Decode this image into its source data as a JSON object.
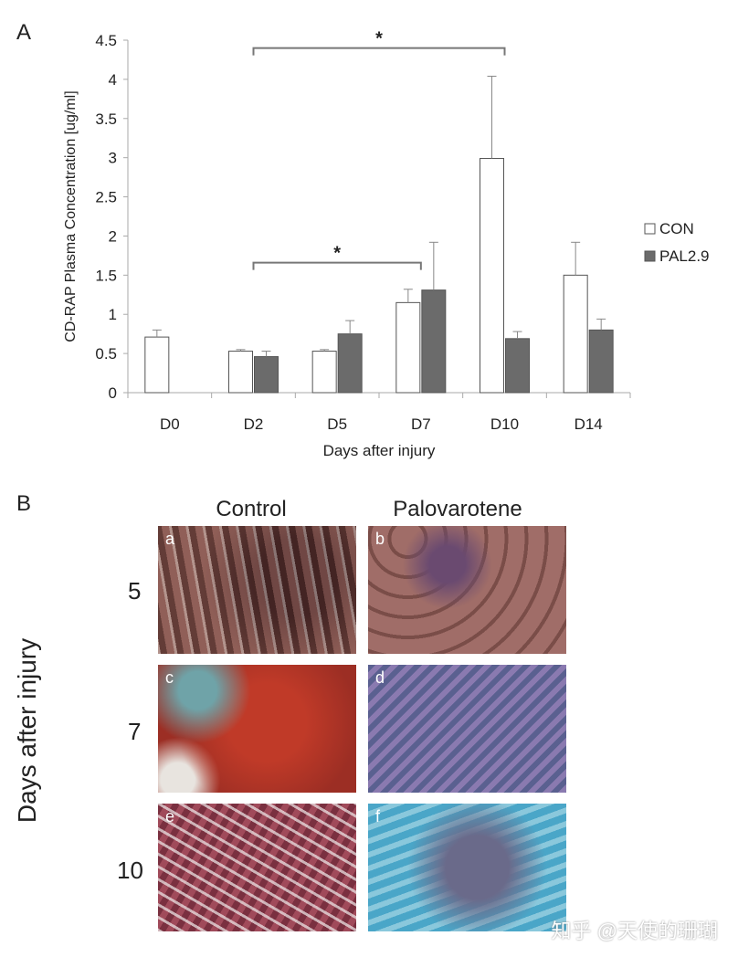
{
  "panel_a_letter": "A",
  "panel_b_letter": "B",
  "chart_data": {
    "type": "bar",
    "categories": [
      "D0",
      "D2",
      "D5",
      "D7",
      "D10",
      "D14"
    ],
    "series": [
      {
        "name": "CON",
        "color": "#ffffff",
        "values": [
          0.71,
          0.53,
          0.53,
          1.15,
          2.99,
          1.5
        ],
        "errors": [
          0.09,
          0.02,
          0.02,
          0.17,
          1.05,
          0.42
        ]
      },
      {
        "name": "PAL2.9",
        "color": "#6b6b6b",
        "values": [
          null,
          0.46,
          0.75,
          1.31,
          0.69,
          0.8
        ],
        "errors": [
          null,
          0.07,
          0.17,
          0.61,
          0.09,
          0.14
        ]
      }
    ],
    "xlabel": "Days after injury",
    "ylabel": "CD-RAP Plasma Concentration [ug/ml]",
    "ylim": [
      0,
      4.5
    ],
    "yticks": [
      "0",
      "0.5",
      "1",
      "1.5",
      "2",
      "2.5",
      "3",
      "3.5",
      "4",
      "4.5"
    ],
    "grid": false,
    "legend_position": "right",
    "annotations": [
      {
        "text": "*",
        "from": "D2",
        "to": "D10",
        "y": 4.4
      },
      {
        "text": "*",
        "from": "D2",
        "to": "D7",
        "y": 1.66
      }
    ]
  },
  "panel_b": {
    "columns": [
      "Control",
      "Palovarotene"
    ],
    "row_title": "Days after injury",
    "rows": [
      "5",
      "7",
      "10"
    ],
    "image_letters": [
      "a",
      "b",
      "c",
      "d",
      "e",
      "f"
    ]
  },
  "watermark": "知乎 @天使的珊瑚"
}
